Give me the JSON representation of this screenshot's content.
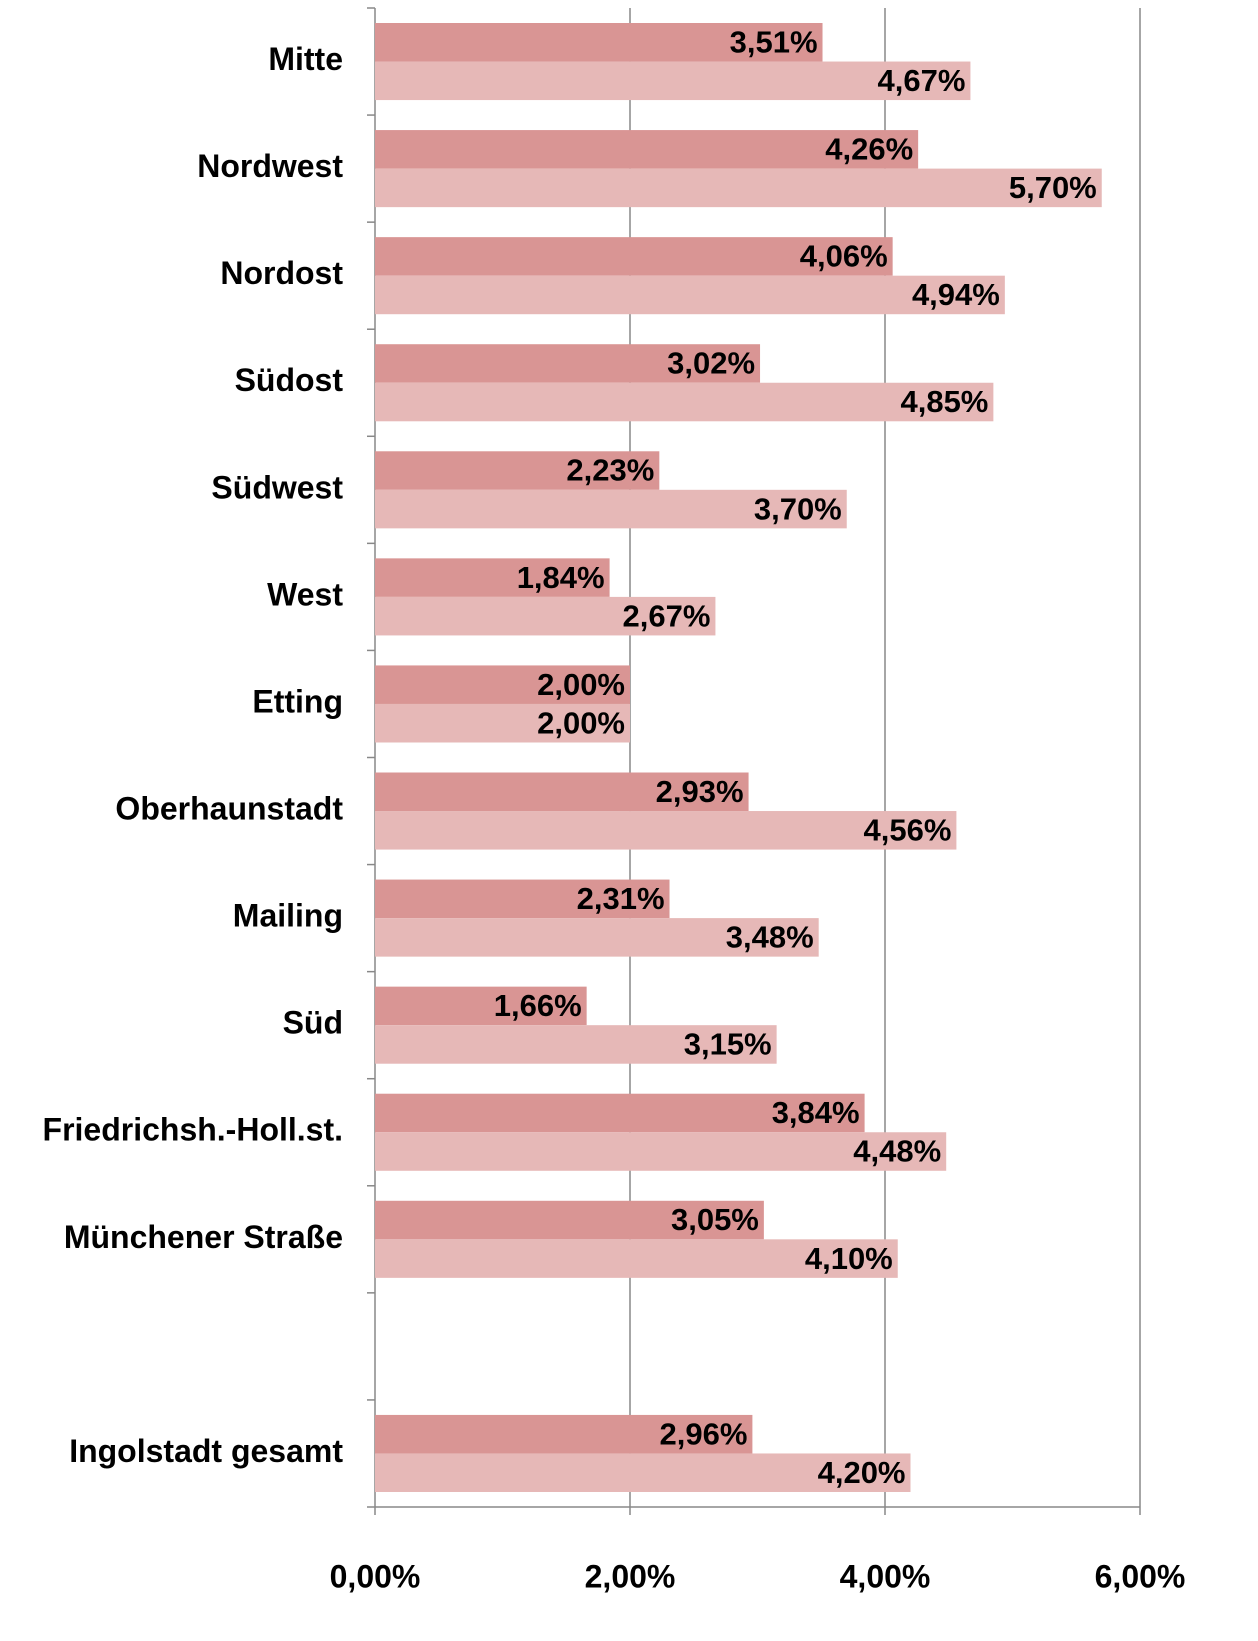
{
  "chart_data": {
    "type": "bar",
    "orientation": "horizontal",
    "categories": [
      "Mitte",
      "Nordwest",
      "Nordost",
      "Südost",
      "Südwest",
      "West",
      "Etting",
      "Oberhaunstadt",
      "Mailing",
      "Süd",
      "Friedrichsh.-Holl.st.",
      "Münchener Straße",
      null,
      "Ingolstadt gesamt"
    ],
    "series": [
      {
        "color": "#d99594",
        "values": [
          3.51,
          4.26,
          4.06,
          3.02,
          2.23,
          1.84,
          2.0,
          2.93,
          2.31,
          1.66,
          3.84,
          3.05,
          null,
          2.96
        ],
        "value_labels": [
          "3,51%",
          "4,26%",
          "4,06%",
          "3,02%",
          "2,23%",
          "1,84%",
          "2,00%",
          "2,93%",
          "2,31%",
          "1,66%",
          "3,84%",
          "3,05%",
          null,
          "2,96%"
        ]
      },
      {
        "color": "#e6b8b7",
        "values": [
          4.67,
          5.7,
          4.94,
          4.85,
          3.7,
          2.67,
          2.0,
          4.56,
          3.48,
          3.15,
          4.48,
          4.1,
          null,
          4.2
        ],
        "value_labels": [
          "4,67%",
          "5,70%",
          "4,94%",
          "4,85%",
          "3,70%",
          "2,67%",
          "2,00%",
          "4,56%",
          "3,48%",
          "3,15%",
          "4,48%",
          "4,10%",
          null,
          "4,20%"
        ]
      }
    ],
    "xlim": [
      0,
      6
    ],
    "xticks": [
      {
        "value": 0,
        "label": "0,00%"
      },
      {
        "value": 2,
        "label": "2,00%"
      },
      {
        "value": 4,
        "label": "4,00%"
      },
      {
        "value": 6,
        "label": "6,00%"
      }
    ],
    "grid": true
  }
}
